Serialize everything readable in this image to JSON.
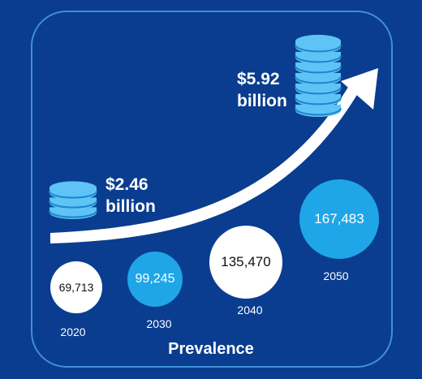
{
  "amounts": {
    "start": "$2.46\nbillion",
    "end": "$5.92\nbillion"
  },
  "bubbles": [
    {
      "year": "2020",
      "value": "69,713"
    },
    {
      "year": "2030",
      "value": "99,245"
    },
    {
      "year": "2040",
      "value": "135,470"
    },
    {
      "year": "2050",
      "value": "167,483"
    }
  ],
  "caption": "Prevalence",
  "colors": {
    "background": "#0a3d8f",
    "frame_border": "#3f8fd6",
    "accent": "#1fa6e8",
    "white": "#ffffff",
    "coin_light": "#5fc3f5",
    "coin_dark": "#1a86cf"
  },
  "icons": [
    "small-coin-stack-icon",
    "large-coin-stack-icon",
    "growth-arrow-icon"
  ]
}
